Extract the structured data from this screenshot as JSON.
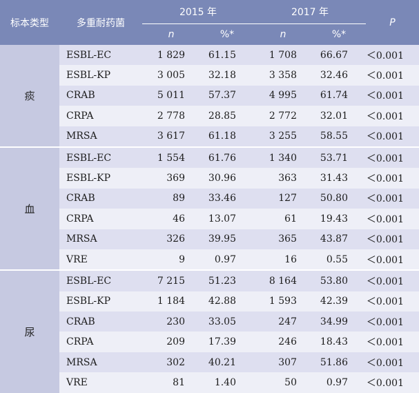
{
  "headers": {
    "specimen": "标本类型",
    "drug": "多重耐药菌",
    "year1": "2015 年",
    "year2": "2017 年",
    "p": "P",
    "n": "n",
    "pct": "%*"
  },
  "groups": [
    {
      "label": "痰",
      "rows": [
        {
          "drug": "ESBL-EC",
          "n1": "1 829",
          "p1": "61.15",
          "n2": "1 708",
          "p2": "66.67",
          "p": "＜0.001"
        },
        {
          "drug": "ESBL-KP",
          "n1": "3 005",
          "p1": "32.18",
          "n2": "3 358",
          "p2": "32.46",
          "p": "＜0.001"
        },
        {
          "drug": "CRAB",
          "n1": "5 011",
          "p1": "57.37",
          "n2": "4 995",
          "p2": "61.74",
          "p": "＜0.001"
        },
        {
          "drug": "CRPA",
          "n1": "2 778",
          "p1": "28.85",
          "n2": "2 772",
          "p2": "32.01",
          "p": "＜0.001"
        },
        {
          "drug": "MRSA",
          "n1": "3 617",
          "p1": "61.18",
          "n2": "3 255",
          "p2": "58.55",
          "p": "＜0.001"
        }
      ]
    },
    {
      "label": "血",
      "rows": [
        {
          "drug": "ESBL-EC",
          "n1": "1 554",
          "p1": "61.76",
          "n2": "1 340",
          "p2": "53.71",
          "p": "＜0.001"
        },
        {
          "drug": "ESBL-KP",
          "n1": "369",
          "p1": "30.96",
          "n2": "363",
          "p2": "31.43",
          "p": "＜0.001"
        },
        {
          "drug": "CRAB",
          "n1": "89",
          "p1": "33.46",
          "n2": "127",
          "p2": "50.80",
          "p": "＜0.001"
        },
        {
          "drug": "CRPA",
          "n1": "46",
          "p1": "13.07",
          "n2": "61",
          "p2": "19.43",
          "p": "＜0.001"
        },
        {
          "drug": "MRSA",
          "n1": "326",
          "p1": "39.95",
          "n2": "365",
          "p2": "43.87",
          "p": "＜0.001"
        },
        {
          "drug": "VRE",
          "n1": "9",
          "p1": "0.97",
          "n2": "16",
          "p2": "0.55",
          "p": "＜0.001"
        }
      ]
    },
    {
      "label": "尿",
      "rows": [
        {
          "drug": "ESBL-EC",
          "n1": "7 215",
          "p1": "51.23",
          "n2": "8 164",
          "p2": "53.80",
          "p": "＜0.001"
        },
        {
          "drug": "ESBL-KP",
          "n1": "1 184",
          "p1": "42.88",
          "n2": "1 593",
          "p2": "42.39",
          "p": "＜0.001"
        },
        {
          "drug": "CRAB",
          "n1": "230",
          "p1": "33.05",
          "n2": "247",
          "p2": "34.99",
          "p": "＜0.001"
        },
        {
          "drug": "CRPA",
          "n1": "209",
          "p1": "17.39",
          "n2": "246",
          "p2": "18.43",
          "p": "＜0.001"
        },
        {
          "drug": "MRSA",
          "n1": "302",
          "p1": "40.21",
          "n2": "307",
          "p2": "51.86",
          "p": "＜0.001"
        },
        {
          "drug": "VRE",
          "n1": "81",
          "p1": "1.40",
          "n2": "50",
          "p2": "0.97",
          "p": "＜0.001"
        }
      ]
    }
  ]
}
